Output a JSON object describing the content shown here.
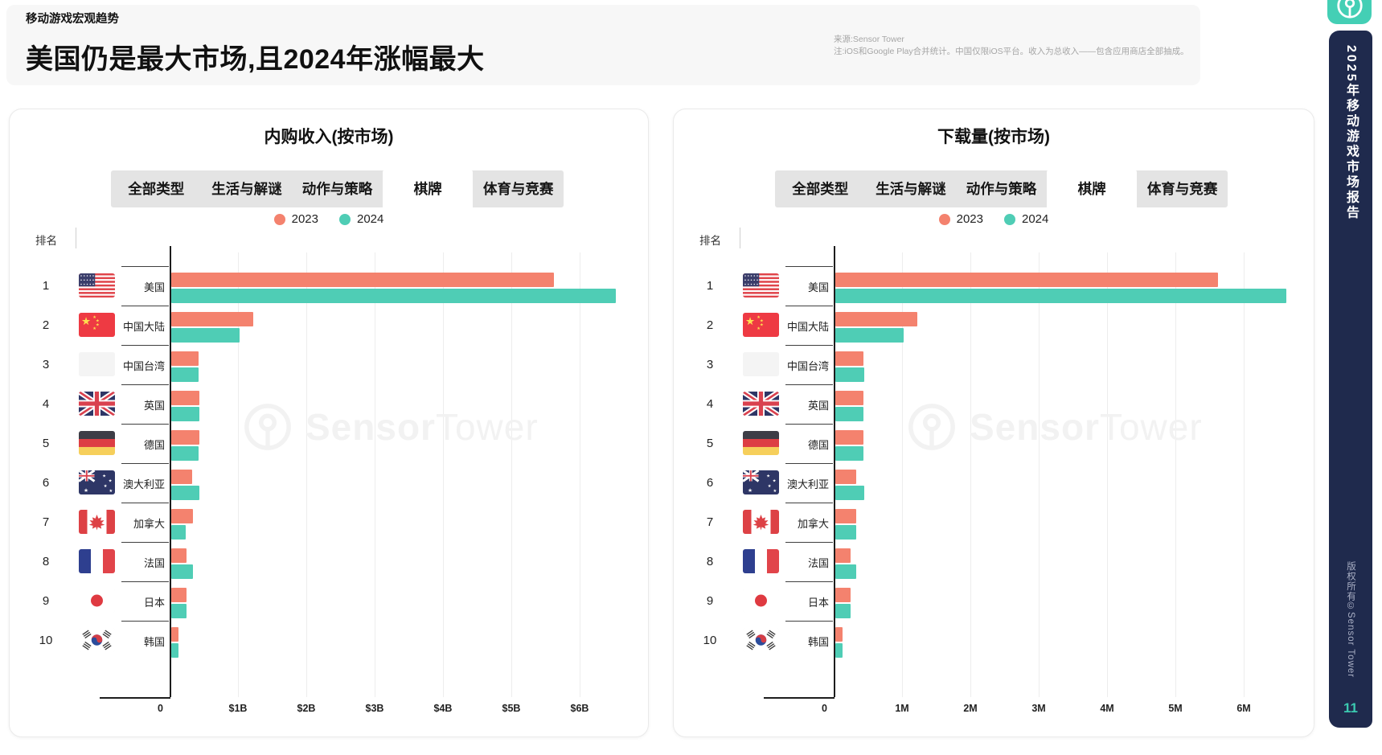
{
  "page": {
    "eyebrow": "移动游戏宏观趋势",
    "title": "美国仍是最大市场,且2024年涨幅最大",
    "source_line": "来源:Sensor Tower",
    "note_line": "注:iOS和Google Play合并统计。中国仅限iOS平台。收入为总收入——包含应用商店全部抽成。"
  },
  "sidebar": {
    "report_title": "2025年移动游戏市场报告",
    "copyright": "版权所有©Sensor Tower",
    "page_number": "11",
    "accent_color": "#44cfb5",
    "bar_color": "#1f2a4d"
  },
  "tabs": [
    "全部类型",
    "生活与解谜",
    "动作与策略",
    "棋牌",
    "体育与竞赛"
  ],
  "active_tab": "棋牌",
  "legend": [
    {
      "label": "2023",
      "color": "#F4826E"
    },
    {
      "label": "2024",
      "color": "#4FCDB5"
    }
  ],
  "rank_header": "排名",
  "watermark": {
    "bold": "Sensor",
    "light": "Tower"
  },
  "chart_data": [
    {
      "type": "bar",
      "orientation": "horizontal",
      "title": "内购收入(按市场)",
      "unit": "USD billions",
      "x_ticks": [
        "0",
        "$1B",
        "$2B",
        "$3B",
        "$4B",
        "$5B",
        "$6B"
      ],
      "x_tick_values": [
        0,
        1,
        2,
        3,
        4,
        5,
        6
      ],
      "xlim": [
        0,
        6.8
      ],
      "grid": true,
      "legend_position": "top",
      "categories": [
        {
          "rank": "1",
          "label": "美国",
          "flag": "us"
        },
        {
          "rank": "2",
          "label": "中国大陆",
          "flag": "cn"
        },
        {
          "rank": "3",
          "label": "中国台湾",
          "flag": "blank"
        },
        {
          "rank": "4",
          "label": "英国",
          "flag": "gb"
        },
        {
          "rank": "5",
          "label": "德国",
          "flag": "de"
        },
        {
          "rank": "6",
          "label": "澳大利亚",
          "flag": "au"
        },
        {
          "rank": "7",
          "label": "加拿大",
          "flag": "ca"
        },
        {
          "rank": "8",
          "label": "法国",
          "flag": "fr"
        },
        {
          "rank": "9",
          "label": "日本",
          "flag": "jp"
        },
        {
          "rank": "10",
          "label": "韩国",
          "flag": "kr"
        }
      ],
      "series": [
        {
          "name": "2023",
          "color": "#F4826E",
          "values": [
            5.6,
            1.2,
            0.4,
            0.41,
            0.41,
            0.31,
            0.32,
            0.22,
            0.22,
            0.11
          ]
        },
        {
          "name": "2024",
          "color": "#4FCDB5",
          "values": [
            6.5,
            1.0,
            0.4,
            0.41,
            0.4,
            0.41,
            0.21,
            0.32,
            0.22,
            0.11
          ]
        }
      ]
    },
    {
      "type": "bar",
      "orientation": "horizontal",
      "title": "下载量(按市场)",
      "unit": "millions of downloads",
      "x_ticks": [
        "0",
        "1M",
        "2M",
        "3M",
        "4M",
        "5M",
        "6M"
      ],
      "x_tick_values": [
        0,
        1,
        2,
        3,
        4,
        5,
        6
      ],
      "xlim": [
        0,
        6.8
      ],
      "grid": true,
      "legend_position": "top",
      "categories": [
        {
          "rank": "1",
          "label": "美国",
          "flag": "us"
        },
        {
          "rank": "2",
          "label": "中国大陆",
          "flag": "cn"
        },
        {
          "rank": "3",
          "label": "中国台湾",
          "flag": "blank"
        },
        {
          "rank": "4",
          "label": "英国",
          "flag": "gb"
        },
        {
          "rank": "5",
          "label": "德国",
          "flag": "de"
        },
        {
          "rank": "6",
          "label": "澳大利亚",
          "flag": "au"
        },
        {
          "rank": "7",
          "label": "加拿大",
          "flag": "ca"
        },
        {
          "rank": "8",
          "label": "法国",
          "flag": "fr"
        },
        {
          "rank": "9",
          "label": "日本",
          "flag": "jp"
        },
        {
          "rank": "10",
          "label": "韩国",
          "flag": "kr"
        }
      ],
      "series": [
        {
          "name": "2023",
          "color": "#F4826E",
          "values": [
            5.6,
            1.2,
            0.41,
            0.41,
            0.41,
            0.31,
            0.31,
            0.22,
            0.22,
            0.11
          ]
        },
        {
          "name": "2024",
          "color": "#4FCDB5",
          "values": [
            6.6,
            1.0,
            0.42,
            0.41,
            0.41,
            0.42,
            0.31,
            0.31,
            0.22,
            0.11
          ]
        }
      ]
    }
  ]
}
